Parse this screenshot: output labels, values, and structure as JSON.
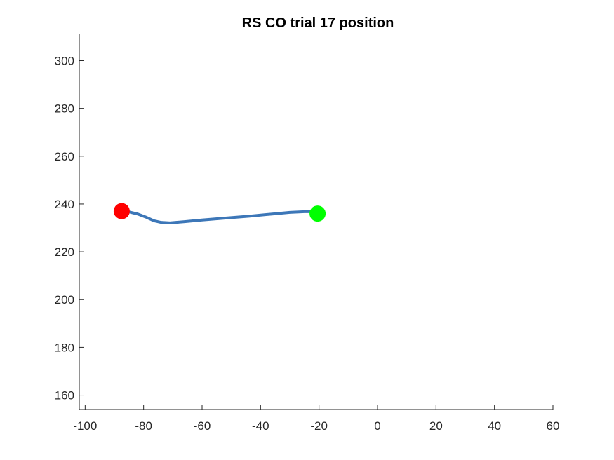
{
  "chart_data": {
    "type": "line",
    "title": "RS  CO trial 17 position",
    "xlabel": "",
    "ylabel": "",
    "xlim": [
      -102,
      60
    ],
    "ylim": [
      154,
      311
    ],
    "xticks": [
      -100,
      -80,
      -60,
      -40,
      -20,
      0,
      20,
      40,
      60
    ],
    "yticks": [
      160,
      180,
      200,
      220,
      240,
      260,
      280,
      300
    ],
    "grid": false,
    "box": false,
    "series": [
      {
        "color": "#3d77b8",
        "x": [
          -87.5,
          -85,
          -82,
          -79,
          -76.5,
          -74,
          -71,
          -66,
          -60,
          -52,
          -44,
          -36,
          -30,
          -25,
          -22.5,
          -21
        ],
        "y": [
          237,
          236.7,
          235.8,
          234.4,
          233,
          232.3,
          232.1,
          232.6,
          233.3,
          234.1,
          234.9,
          235.8,
          236.5,
          236.8,
          236.8,
          236.6
        ]
      }
    ],
    "markers": [
      {
        "name": "start",
        "x": -87.5,
        "y": 237,
        "color": "#ff0000"
      },
      {
        "name": "end",
        "x": -20.5,
        "y": 236,
        "color": "#00ff00"
      }
    ]
  }
}
